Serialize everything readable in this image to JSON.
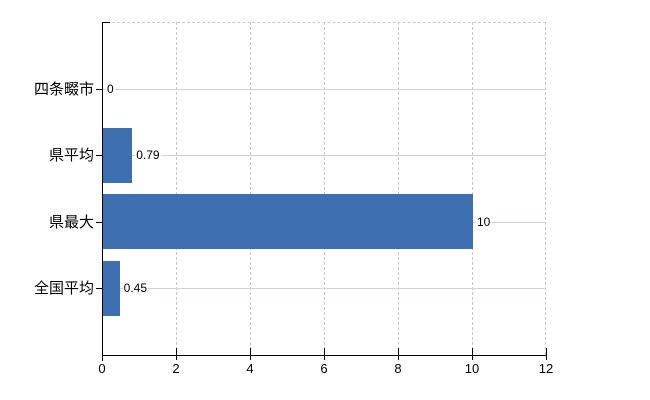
{
  "chart_data": {
    "type": "bar",
    "orientation": "horizontal",
    "title": "",
    "xlabel": "",
    "ylabel": "",
    "categories": [
      "四条畷市",
      "県平均",
      "県最大",
      "全国平均"
    ],
    "values": [
      0,
      0.79,
      10,
      0.45
    ],
    "value_labels": [
      "0",
      "0.79",
      "10",
      "0.45"
    ],
    "xlim": [
      0,
      12
    ],
    "xticks": [
      0,
      2,
      4,
      6,
      8,
      10,
      12
    ],
    "xtick_labels": [
      "0",
      "2",
      "4",
      "6",
      "8",
      "10",
      "12"
    ],
    "grid": true,
    "legend": false,
    "colors": {
      "bar": "#3e6fb1",
      "h_gridline": "#ccd6cc",
      "v_gridline": "#c9c9c9",
      "axis": "#000000",
      "text": "#000000",
      "background": "#ffffff"
    }
  }
}
